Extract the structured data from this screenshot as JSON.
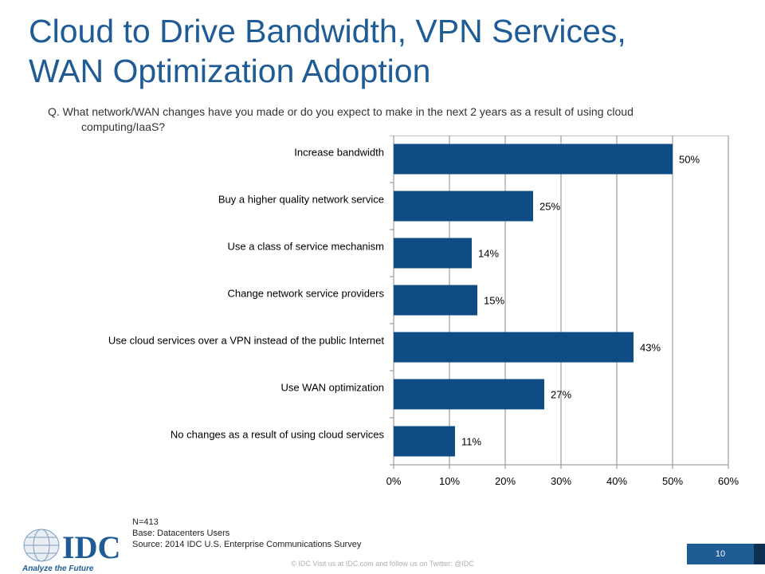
{
  "title": {
    "line1": "Cloud to Drive Bandwidth, VPN Services,",
    "line2": "WAN Optimization Adoption"
  },
  "question": {
    "line1": "Q. What network/WAN changes have you made or do you expect to make in the next 2 years as a result of using cloud",
    "line2": "computing/IaaS?"
  },
  "chart_data": {
    "type": "bar",
    "orientation": "horizontal",
    "categories": [
      "Increase bandwidth",
      "Buy a higher quality network service",
      "Use a class of service mechanism",
      "Change network service providers",
      "Use cloud services over a VPN instead of the public Internet",
      "Use WAN optimization",
      "No changes as a result of using cloud services"
    ],
    "values": [
      50,
      25,
      14,
      15,
      43,
      27,
      11
    ],
    "data_labels": [
      "50%",
      "25%",
      "14%",
      "15%",
      "43%",
      "27%",
      "11%"
    ],
    "xlim": [
      0,
      60
    ],
    "xticks": [
      "0%",
      "10%",
      "20%",
      "30%",
      "40%",
      "50%",
      "60%"
    ],
    "grid": "vertical",
    "bar_color": "#0f4c86"
  },
  "notes": {
    "n": "N=413",
    "base": "Base: Datacenters Users",
    "source": "Source: 2014 IDC U.S. Enterprise Communications Survey"
  },
  "footer": {
    "text": "© IDC  Visit us at IDC.com and follow us on Twitter: @IDC",
    "page_number": "10"
  },
  "logo": {
    "text": "IDC",
    "tagline": "Analyze the Future",
    "color": "#1f5b94"
  }
}
